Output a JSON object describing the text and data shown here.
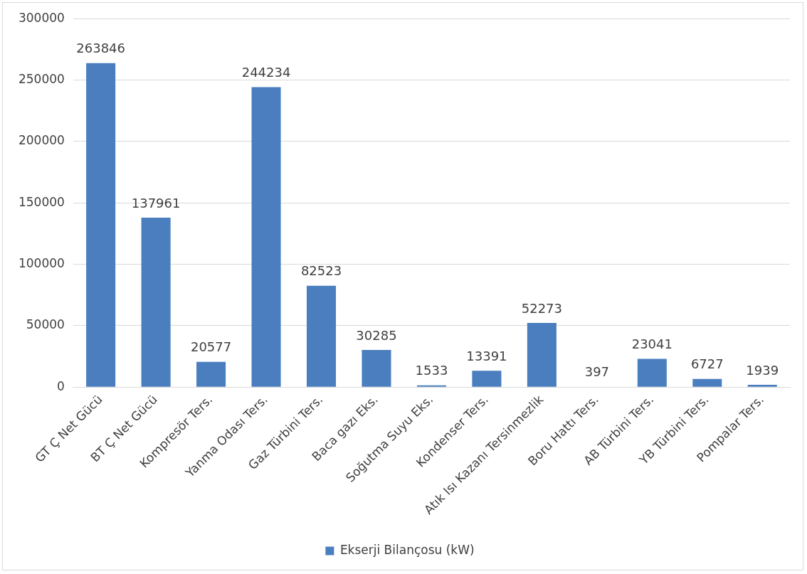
{
  "chart_data": {
    "type": "bar",
    "categories": [
      "GT Ç Net Gücü",
      "BT Ç Net Gücü",
      "Kompresör Ters.",
      "Yanma Odası Ters.",
      "Gaz Türbini Ters.",
      "Baca gazı Eks.",
      "Soğutma Suyu Eks.",
      "Kondenser Ters.",
      "Atık Isı Kazanı Tersinmezlik",
      "Boru Hattı Ters.",
      "AB Türbini Ters.",
      "YB Türbini Ters.",
      "Pompalar Ters."
    ],
    "series": [
      {
        "name": "Ekserji Bilançosu (kW)",
        "color": "#4a7ebf",
        "values": [
          263846,
          137961,
          20577,
          244234,
          82523,
          30285,
          1533,
          13391,
          52273,
          397,
          23041,
          6727,
          1939
        ]
      }
    ],
    "ylim": [
      0,
      300000
    ],
    "yticks": [
      0,
      50000,
      100000,
      150000,
      200000,
      250000,
      300000
    ],
    "grid": "y",
    "legend": "bottom",
    "data_labels": true
  }
}
